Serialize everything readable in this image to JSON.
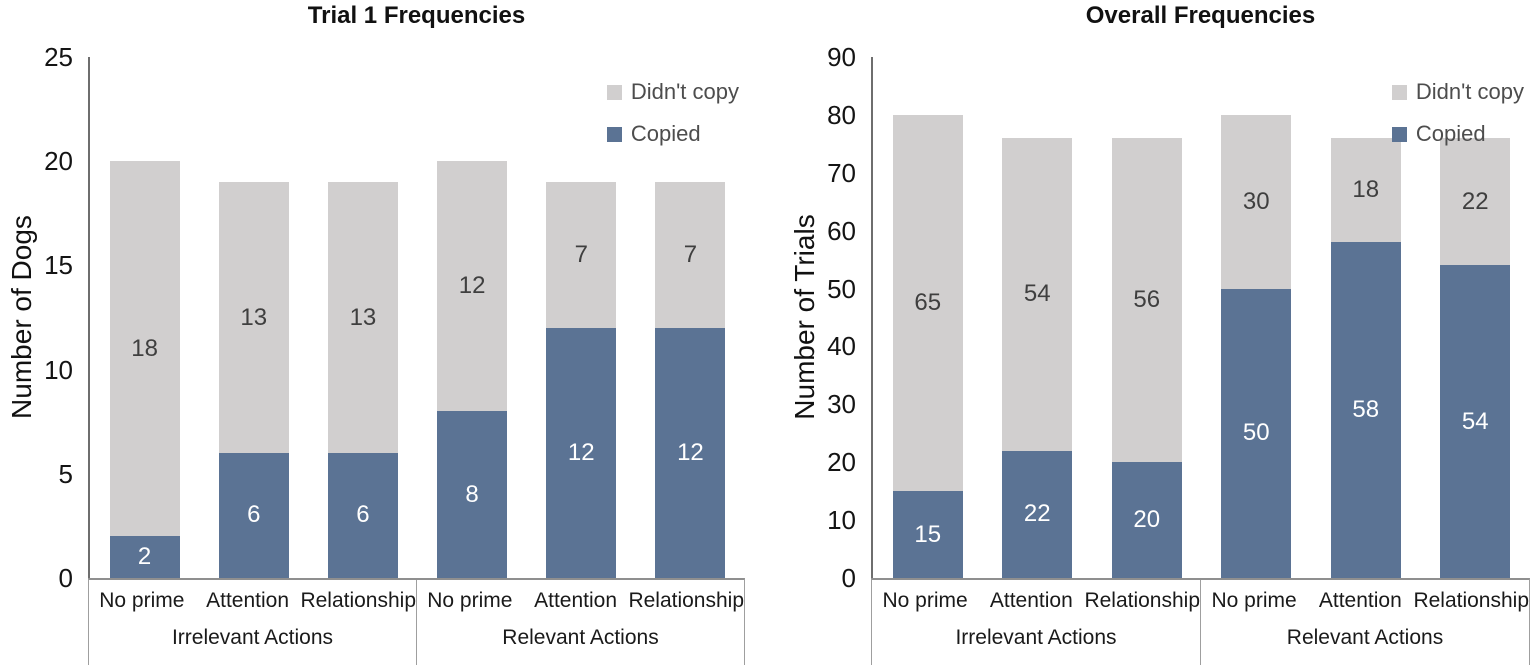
{
  "chart_data": [
    {
      "type": "bar",
      "stacked": true,
      "title": "Trial 1 Frequencies",
      "ylabel": "Number of Dogs",
      "ylim": [
        0,
        25
      ],
      "ytick_step": 5,
      "grid": false,
      "legend_position": "top-right",
      "legend_order": [
        "Didn't copy",
        "Copied"
      ],
      "groups": [
        "Irrelevant Actions",
        "Relevant Actions"
      ],
      "categories": [
        "No prime",
        "Attention",
        "Relationship",
        "No prime",
        "Attention",
        "Relationship"
      ],
      "series": [
        {
          "name": "Copied",
          "color": "#5b7394",
          "label_color": "#ffffff",
          "values": [
            2,
            6,
            6,
            8,
            12,
            12
          ]
        },
        {
          "name": "Didn't copy",
          "color": "#d1cfcf",
          "label_color": "#3f3f3f",
          "values": [
            18,
            13,
            13,
            12,
            7,
            7
          ]
        }
      ]
    },
    {
      "type": "bar",
      "stacked": true,
      "title": "Overall Frequencies",
      "ylabel": "Number of Trials",
      "ylim": [
        0,
        90
      ],
      "ytick_step": 10,
      "grid": false,
      "legend_position": "top-right",
      "legend_order": [
        "Didn't copy",
        "Copied"
      ],
      "groups": [
        "Irrelevant Actions",
        "Relevant Actions"
      ],
      "categories": [
        "No prime",
        "Attention",
        "Relationship",
        "No prime",
        "Attention",
        "Relationship"
      ],
      "series": [
        {
          "name": "Copied",
          "color": "#5b7394",
          "label_color": "#ffffff",
          "values": [
            15,
            22,
            20,
            50,
            58,
            54
          ]
        },
        {
          "name": "Didn't copy",
          "color": "#d1cfcf",
          "label_color": "#3f3f3f",
          "values": [
            65,
            54,
            56,
            30,
            18,
            22
          ]
        }
      ]
    }
  ],
  "colors": {
    "copied": "#5b7394",
    "didnt_copy": "#d1cfcf",
    "axis_line": "#6e6e6e",
    "box_line": "#9f9f9f",
    "legend_text": "#4d4d4d"
  }
}
